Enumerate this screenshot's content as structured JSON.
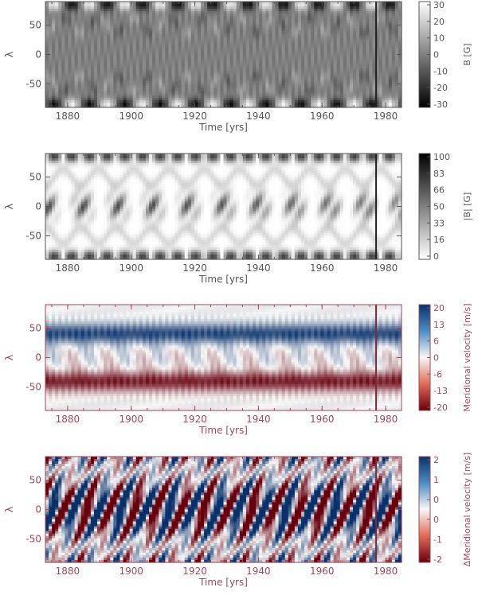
{
  "chart_data": [
    {
      "type": "heatmap",
      "xlabel": "Time [yrs]",
      "ylabel": "λ",
      "xlim": [
        1873,
        1985
      ],
      "ylim": [
        -90,
        90
      ],
      "x_ticks": [
        "1880",
        "1900",
        "1920",
        "1940",
        "1960",
        "1980"
      ],
      "y_ticks": [
        "50",
        "0",
        "-50"
      ],
      "colorbar_label": "B [G]",
      "colorbar_ticks": [
        "30",
        "20",
        "10",
        "0",
        "-10",
        "-20",
        "-30"
      ],
      "colorbar_range": [
        -30,
        30
      ],
      "colormap": "gray",
      "axis_color": "#555555",
      "marker_line_year": 1977
    },
    {
      "type": "heatmap",
      "xlabel": "Time [yrs]",
      "ylabel": "λ",
      "xlim": [
        1873,
        1985
      ],
      "ylim": [
        -90,
        90
      ],
      "x_ticks": [
        "1880",
        "1900",
        "1920",
        "1940",
        "1960",
        "1980"
      ],
      "y_ticks": [
        "50",
        "0",
        "-50"
      ],
      "colorbar_label": "|B| [G]",
      "colorbar_ticks": [
        "100",
        "83",
        "66",
        "50",
        "33",
        "16",
        "0"
      ],
      "colorbar_range": [
        0,
        100
      ],
      "colormap": "gray-reversed",
      "axis_color": "#555555",
      "marker_line_year": 1977
    },
    {
      "type": "heatmap",
      "xlabel": "Time [yrs]",
      "ylabel": "λ",
      "xlim": [
        1873,
        1985
      ],
      "ylim": [
        -90,
        90
      ],
      "x_ticks": [
        "1880",
        "1900",
        "1920",
        "1940",
        "1960",
        "1980"
      ],
      "y_ticks": [
        "50",
        "0",
        "-50"
      ],
      "colorbar_label": "Meridional velocity [m/s]",
      "colorbar_ticks": [
        "20",
        "13",
        "6",
        "0",
        "-6",
        "-13",
        "-20"
      ],
      "colorbar_range": [
        -20,
        20
      ],
      "colormap": "red-white-blue",
      "axis_color": "#9a4a5a",
      "marker_line_year": 1977
    },
    {
      "type": "heatmap",
      "xlabel": "Time [yrs]",
      "ylabel": "λ",
      "xlim": [
        1873,
        1985
      ],
      "ylim": [
        -90,
        90
      ],
      "x_ticks": [
        "1880",
        "1900",
        "1920",
        "1940",
        "1960",
        "1980"
      ],
      "y_ticks": [
        "50",
        "0",
        "-50"
      ],
      "colorbar_label": "ΔMeridional velocity [m/s]",
      "colorbar_ticks": [
        "2",
        "1",
        "0",
        "0",
        "-1",
        "-2"
      ],
      "colorbar_range": [
        -2,
        2
      ],
      "colormap": "red-white-blue",
      "axis_color": "#9a4a5a",
      "marker_line_year": 1977
    }
  ]
}
